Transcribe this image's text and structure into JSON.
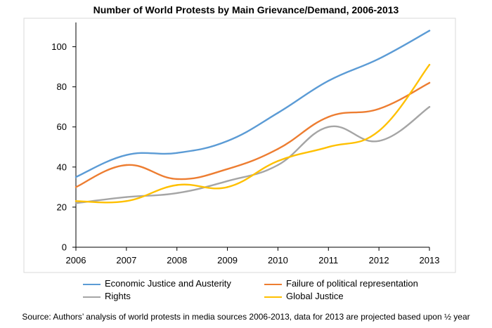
{
  "chart_data": {
    "type": "line",
    "title": "Number of World Protests by Main Grievance/Demand, 2006-2013",
    "xlabel": "",
    "ylabel": "",
    "x": [
      "2006",
      "2007",
      "2008",
      "2009",
      "2010",
      "2011",
      "2012",
      "2013"
    ],
    "ylim": [
      0,
      110
    ],
    "yticks": [
      0,
      20,
      40,
      60,
      80,
      100
    ],
    "grid": false,
    "legend_position": "bottom",
    "series": [
      {
        "name": "Economic Justice and Austerity",
        "color": "#5b9bd5",
        "values": [
          35,
          46,
          47,
          53,
          67,
          83,
          94,
          108
        ]
      },
      {
        "name": "Failure of political representation",
        "color": "#ed7d31",
        "values": [
          30,
          41,
          34,
          39,
          49,
          65,
          69,
          82
        ]
      },
      {
        "name": "Rights",
        "color": "#a5a5a5",
        "values": [
          22,
          25,
          27,
          33,
          41,
          60,
          53,
          70
        ]
      },
      {
        "name": "Global Justice",
        "color": "#ffc000",
        "values": [
          23,
          23,
          31,
          30,
          43,
          50,
          58,
          91
        ]
      }
    ],
    "source": "Source: Authors’ analysis of world protests in media sources 2006-2013, data for 2013 are projected based upon ½ year"
  }
}
